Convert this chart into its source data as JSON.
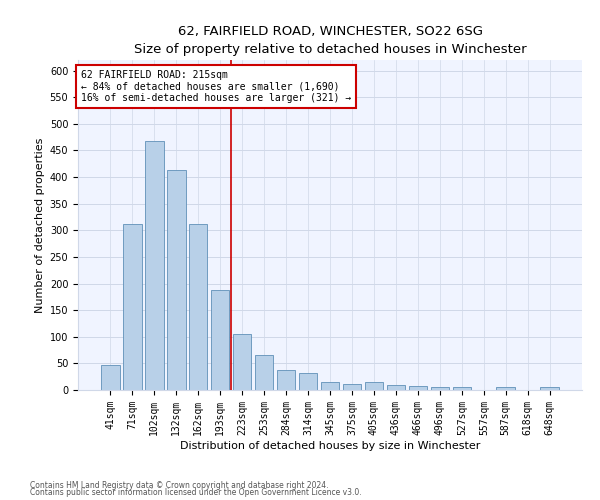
{
  "title": "62, FAIRFIELD ROAD, WINCHESTER, SO22 6SG",
  "subtitle": "Size of property relative to detached houses in Winchester",
  "xlabel": "Distribution of detached houses by size in Winchester",
  "ylabel": "Number of detached properties",
  "categories": [
    "41sqm",
    "71sqm",
    "102sqm",
    "132sqm",
    "162sqm",
    "193sqm",
    "223sqm",
    "253sqm",
    "284sqm",
    "314sqm",
    "345sqm",
    "375sqm",
    "405sqm",
    "436sqm",
    "466sqm",
    "496sqm",
    "527sqm",
    "557sqm",
    "587sqm",
    "618sqm",
    "648sqm"
  ],
  "values": [
    47,
    312,
    467,
    413,
    312,
    188,
    105,
    66,
    38,
    32,
    15,
    12,
    15,
    10,
    8,
    5,
    5,
    0,
    5,
    0,
    5
  ],
  "bar_color": "#b8d0e8",
  "bar_edge_color": "#6090b8",
  "bar_linewidth": 0.6,
  "vline_x": 5.5,
  "vline_color": "#cc0000",
  "annotation_text": "62 FAIRFIELD ROAD: 215sqm\n← 84% of detached houses are smaller (1,690)\n16% of semi-detached houses are larger (321) →",
  "annotation_box_color": "#ffffff",
  "annotation_box_edge": "#cc0000",
  "ylim": [
    0,
    620
  ],
  "yticks": [
    0,
    50,
    100,
    150,
    200,
    250,
    300,
    350,
    400,
    450,
    500,
    550,
    600
  ],
  "footer1": "Contains HM Land Registry data © Crown copyright and database right 2024.",
  "footer2": "Contains public sector information licensed under the Open Government Licence v3.0.",
  "bg_color": "#f0f4ff",
  "grid_color": "#d0d8e8",
  "title_fontsize": 9.5,
  "subtitle_fontsize": 8.5,
  "xlabel_fontsize": 8,
  "ylabel_fontsize": 8,
  "tick_fontsize": 7,
  "annotation_fontsize": 7
}
